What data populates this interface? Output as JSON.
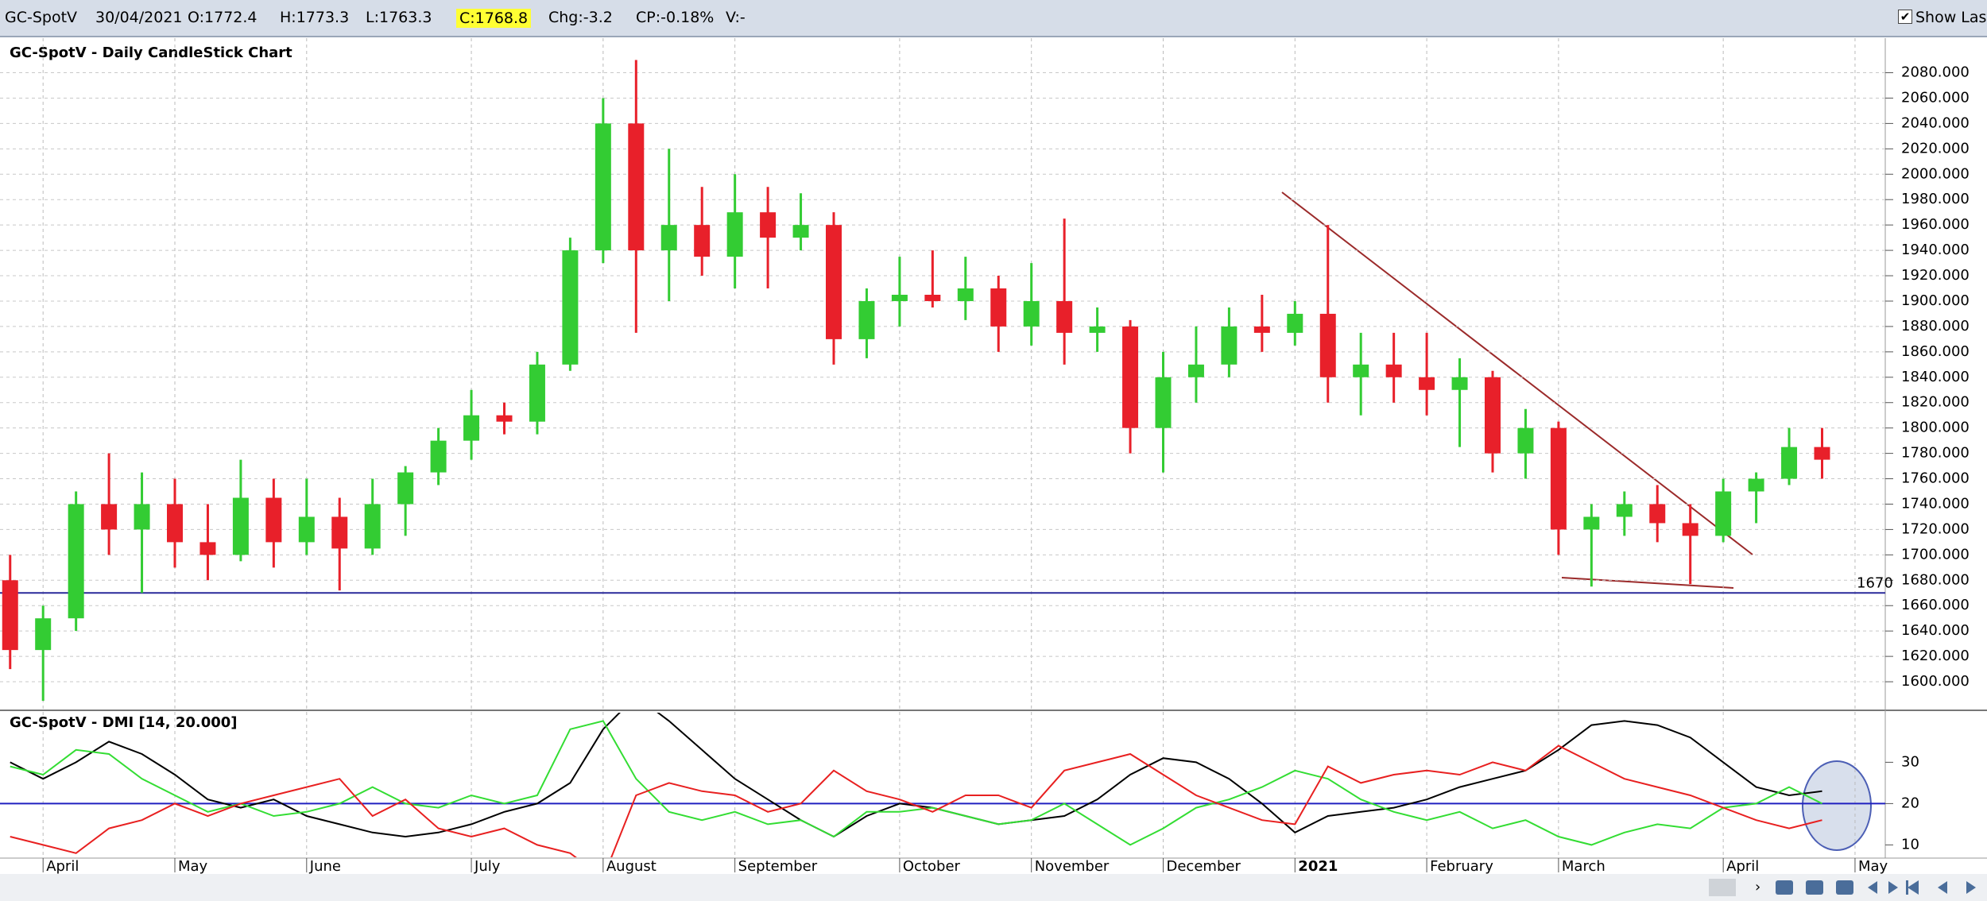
{
  "header": {
    "symbol": "GC-SpotV",
    "date": "30/04/2021",
    "open": "O:1772.4",
    "high": "H:1773.3",
    "low": "L:1763.3",
    "close": "C:1768.8",
    "change": "Chg:-3.2",
    "change_pct": "CP:-0.18%",
    "volume": "V:-",
    "show_last": "Show Last"
  },
  "chart_data": [
    {
      "type": "candlestick",
      "title": "GC-SpotV - Daily CandleStick Chart",
      "categories": [
        null,
        "April",
        null,
        null,
        null,
        "May",
        null,
        null,
        null,
        "June",
        null,
        null,
        null,
        null,
        "July",
        null,
        null,
        null,
        "August",
        null,
        null,
        null,
        "September",
        null,
        null,
        null,
        null,
        "October",
        null,
        null,
        null,
        "November",
        null,
        null,
        null,
        "December",
        null,
        null,
        null,
        "2021",
        null,
        null,
        null,
        "February",
        null,
        null,
        null,
        "March",
        null,
        null,
        null,
        null,
        "April",
        null,
        null,
        null,
        "May"
      ],
      "open": [
        1680,
        1625,
        1650,
        1740,
        1720,
        1740,
        1710,
        1700,
        1745,
        1710,
        1730,
        1705,
        1740,
        1765,
        1790,
        1810,
        1805,
        1850,
        1940,
        2040,
        1940,
        1960,
        1935,
        1970,
        1950,
        1960,
        1870,
        1900,
        1905,
        1900,
        1910,
        1880,
        1900,
        1875,
        1880,
        1800,
        1840,
        1850,
        1880,
        1875,
        1890,
        1840,
        1850,
        1840,
        1830,
        1840,
        1780,
        1800,
        1720,
        1730,
        1740,
        1725,
        1715,
        1750,
        1760,
        1785,
        null
      ],
      "high": [
        1700,
        1660,
        1750,
        1780,
        1765,
        1760,
        1740,
        1775,
        1760,
        1760,
        1745,
        1760,
        1770,
        1800,
        1830,
        1820,
        1860,
        1950,
        2060,
        2090,
        2020,
        1990,
        2000,
        1990,
        1985,
        1970,
        1910,
        1935,
        1940,
        1935,
        1920,
        1930,
        1965,
        1895,
        1885,
        1860,
        1880,
        1895,
        1905,
        1900,
        1960,
        1875,
        1875,
        1875,
        1855,
        1845,
        1815,
        1805,
        1740,
        1750,
        1755,
        1740,
        1760,
        1765,
        1800,
        1800,
        null
      ],
      "low": [
        1610,
        1585,
        1640,
        1700,
        1670,
        1690,
        1680,
        1695,
        1690,
        1700,
        1672,
        1700,
        1715,
        1755,
        1775,
        1795,
        1795,
        1845,
        1930,
        1875,
        1900,
        1920,
        1910,
        1910,
        1940,
        1850,
        1855,
        1880,
        1895,
        1885,
        1860,
        1865,
        1850,
        1860,
        1780,
        1765,
        1820,
        1840,
        1860,
        1865,
        1820,
        1810,
        1820,
        1810,
        1785,
        1765,
        1760,
        1700,
        1675,
        1715,
        1710,
        1677,
        1710,
        1725,
        1755,
        1760,
        null
      ],
      "close": [
        1625,
        1650,
        1740,
        1720,
        1740,
        1710,
        1700,
        1745,
        1710,
        1730,
        1705,
        1740,
        1765,
        1790,
        1810,
        1805,
        1850,
        1940,
        2040,
        1940,
        1960,
        1935,
        1970,
        1950,
        1960,
        1870,
        1900,
        1905,
        1900,
        1910,
        1880,
        1900,
        1875,
        1880,
        1800,
        1840,
        1850,
        1880,
        1875,
        1890,
        1840,
        1850,
        1840,
        1830,
        1840,
        1780,
        1800,
        1720,
        1730,
        1740,
        1725,
        1715,
        1750,
        1760,
        1785,
        1775,
        null
      ],
      "up_color": "#33cc33",
      "down_color": "#e8202a",
      "ylim": [
        1580,
        2106
      ],
      "yticks": [
        {
          "value": 1600,
          "label": "1600.000"
        },
        {
          "value": 1620,
          "label": "1620.000"
        },
        {
          "value": 1640,
          "label": "1640.000"
        },
        {
          "value": 1660,
          "label": "1660.000"
        },
        {
          "value": 1680,
          "label": "1680.000"
        },
        {
          "value": 1700,
          "label": "1700.000"
        },
        {
          "value": 1720,
          "label": "1720.000"
        },
        {
          "value": 1740,
          "label": "1740.000"
        },
        {
          "value": 1760,
          "label": "1760.000"
        },
        {
          "value": 1780,
          "label": "1780.000"
        },
        {
          "value": 1800,
          "label": "1800.000"
        },
        {
          "value": 1820,
          "label": "1820.000"
        },
        {
          "value": 1840,
          "label": "1840.000"
        },
        {
          "value": 1860,
          "label": "1860.000"
        },
        {
          "value": 1880,
          "label": "1880.000"
        },
        {
          "value": 1900,
          "label": "1900.000"
        },
        {
          "value": 1920,
          "label": "1920.000"
        },
        {
          "value": 1940,
          "label": "1940.000"
        },
        {
          "value": 1960,
          "label": "1960.000"
        },
        {
          "value": 1980,
          "label": "1980.000"
        },
        {
          "value": 2000,
          "label": "2000.000"
        },
        {
          "value": 2020,
          "label": "2020.000"
        },
        {
          "value": 2040,
          "label": "2040.000"
        },
        {
          "value": 2060,
          "label": "2060.000"
        },
        {
          "value": 2080,
          "label": "2080.000"
        }
      ],
      "grid": true,
      "reference_line": 1670,
      "reference_color": "#2a2a9a"
    },
    {
      "type": "line",
      "title": "GC-SpotV - DMI [14, 20.000]",
      "series": [
        {
          "color": "#000000",
          "values": [
            30,
            26,
            30,
            35,
            32,
            27,
            21,
            19,
            21,
            17,
            15,
            13,
            12,
            13,
            15,
            18,
            20,
            25,
            38,
            46,
            40,
            33,
            26,
            21,
            16,
            12,
            17,
            20,
            19,
            17,
            15,
            16,
            17,
            21,
            27,
            31,
            30,
            26,
            20,
            13,
            17,
            18,
            19,
            21,
            24,
            26,
            28,
            33,
            39,
            40,
            39,
            36,
            30,
            24,
            22,
            23,
            null
          ]
        },
        {
          "color": "#33dd33",
          "values": [
            29,
            27,
            33,
            32,
            26,
            22,
            18,
            20,
            17,
            18,
            20,
            24,
            20,
            19,
            22,
            20,
            22,
            38,
            40,
            26,
            18,
            16,
            18,
            15,
            16,
            12,
            18,
            18,
            19,
            17,
            15,
            16,
            20,
            15,
            10,
            14,
            19,
            21,
            24,
            28,
            26,
            21,
            18,
            16,
            18,
            14,
            16,
            12,
            10,
            13,
            15,
            14,
            19,
            20,
            24,
            20,
            null
          ]
        },
        {
          "color": "#e82020",
          "values": [
            12,
            10,
            8,
            14,
            16,
            20,
            17,
            20,
            22,
            24,
            26,
            17,
            21,
            14,
            12,
            14,
            10,
            8,
            2,
            22,
            25,
            23,
            22,
            18,
            20,
            28,
            23,
            21,
            18,
            22,
            22,
            19,
            28,
            30,
            32,
            27,
            22,
            19,
            16,
            15,
            29,
            25,
            27,
            28,
            27,
            30,
            28,
            34,
            30,
            26,
            24,
            22,
            19,
            16,
            14,
            16,
            null
          ]
        }
      ],
      "ylim": [
        7,
        42
      ],
      "yticks": [
        10,
        20,
        30
      ],
      "reference_line": 20,
      "reference_color": "#2020c0"
    }
  ]
}
